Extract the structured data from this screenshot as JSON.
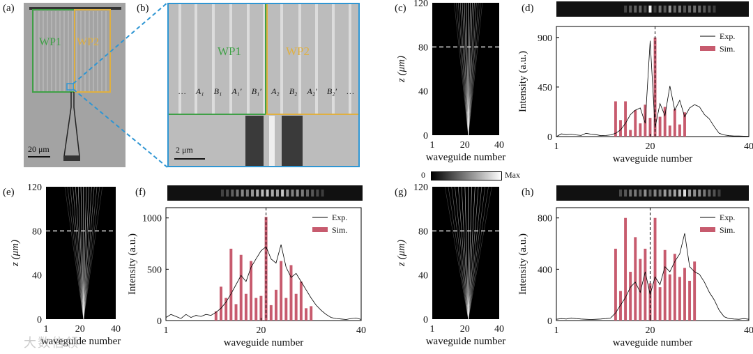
{
  "panel_labels": {
    "a": "(a)",
    "b": "(b)",
    "c": "(c)",
    "d": "(d)",
    "e": "(e)",
    "f": "(f)",
    "g": "(g)",
    "h": "(h)"
  },
  "sem_a": {
    "wp1_label": "WP1",
    "wp2_label": "WP2",
    "scale_bar": "20 μm"
  },
  "sem_b": {
    "wp1_label": "WP1",
    "wp2_label": "WP2",
    "scale_bar": "2 μm",
    "waveguide_labels": [
      "…",
      "A₁",
      "B₁",
      "A₁′",
      "B₁′",
      "A₂",
      "B₂",
      "A₂′",
      "B₂′",
      "…"
    ]
  },
  "colors": {
    "wp1": "#3fa046",
    "wp2": "#e0b040",
    "zoom": "#2f96d3",
    "sim": "#c75b6e",
    "exp": "#000000"
  },
  "colorbar": {
    "min_label": "0",
    "max_label": "Max"
  },
  "z_axis_label": "z (μm)",
  "chart_data": [
    {
      "id": "c",
      "type": "heatmap",
      "xlabel": "waveguide number",
      "ylabel": "z (μm)",
      "xticks": [
        1,
        20,
        40
      ],
      "yticks": [
        0,
        40,
        80,
        120
      ],
      "ylim": [
        0,
        120
      ],
      "marker_z": 80,
      "source_waveguide": 22
    },
    {
      "id": "d",
      "type": "bar",
      "title": "",
      "xlabel": "waveguide number",
      "ylabel": "Intensity (a.u.)",
      "xlim": [
        1,
        40
      ],
      "ylim": [
        0,
        1000
      ],
      "xticks": [
        1,
        20,
        40
      ],
      "yticks": [
        0,
        450,
        900
      ],
      "dashed_x": 21,
      "legend": [
        "Exp.",
        "Sim."
      ],
      "legend_position": "top-right",
      "sim_x": [
        13,
        14,
        15,
        16,
        17,
        18,
        19,
        20,
        21,
        22,
        23,
        24,
        25,
        26,
        27
      ],
      "sim_y": [
        320,
        150,
        320,
        60,
        240,
        120,
        290,
        170,
        900,
        180,
        270,
        100,
        250,
        110,
        220
      ],
      "exp_y": [
        0,
        25,
        18,
        22,
        15,
        10,
        30,
        22,
        18,
        8,
        10,
        15,
        30,
        60,
        120,
        200,
        240,
        260,
        120,
        870,
        80,
        300,
        190,
        460,
        240,
        330,
        180,
        260,
        290,
        270,
        200,
        160,
        90,
        30,
        15,
        8,
        5,
        5,
        4,
        3
      ]
    },
    {
      "id": "e",
      "type": "heatmap",
      "xlabel": "waveguide number",
      "ylabel": "z (μm)",
      "xticks": [
        1,
        20,
        40
      ],
      "yticks": [
        0,
        40,
        80,
        120
      ],
      "ylim": [
        0,
        120
      ],
      "marker_z": 80,
      "source_waveguide": 22
    },
    {
      "id": "f",
      "type": "bar",
      "title": "",
      "xlabel": "waveguide number",
      "ylabel": "Intensity (a.u.)",
      "xlim": [
        1,
        40
      ],
      "ylim": [
        0,
        1100
      ],
      "xticks": [
        1,
        20,
        40
      ],
      "yticks": [
        0,
        500,
        1000
      ],
      "dashed_x": 21,
      "legend": [
        "Exp.",
        "Sim."
      ],
      "legend_position": "top-right",
      "sim_x": [
        11,
        12,
        13,
        14,
        15,
        16,
        17,
        18,
        19,
        20,
        21,
        22,
        23,
        24,
        25,
        26,
        27,
        28,
        29,
        30
      ],
      "sim_y": [
        90,
        330,
        220,
        700,
        160,
        640,
        260,
        580,
        220,
        240,
        1010,
        150,
        300,
        580,
        220,
        540,
        260,
        380,
        120,
        140
      ],
      "exp_y": [
        30,
        60,
        40,
        20,
        60,
        30,
        50,
        40,
        60,
        50,
        80,
        120,
        180,
        260,
        350,
        440,
        380,
        520,
        600,
        680,
        720,
        600,
        560,
        740,
        520,
        420,
        460,
        380,
        300,
        220,
        150,
        100,
        60,
        30,
        20,
        15,
        10,
        20,
        25,
        10
      ]
    },
    {
      "id": "g",
      "type": "heatmap",
      "xlabel": "waveguide number",
      "ylabel": "z (μm)",
      "xticks": [
        1,
        20,
        40
      ],
      "yticks": [
        0,
        40,
        80,
        120
      ],
      "ylim": [
        0,
        120
      ],
      "marker_z": 80,
      "source_waveguide": 22
    },
    {
      "id": "h",
      "type": "bar",
      "title": "",
      "xlabel": "waveguide number",
      "ylabel": "Intensity (a.u.)",
      "xlim": [
        1,
        40
      ],
      "ylim": [
        0,
        880
      ],
      "xticks": [
        1,
        20,
        40
      ],
      "yticks": [
        0,
        400,
        800
      ],
      "dashed_x": 20,
      "legend": [
        "Exp.",
        "Sim."
      ],
      "legend_position": "top-right",
      "sim_x": [
        13,
        14,
        15,
        16,
        17,
        18,
        19,
        20,
        21,
        22,
        23,
        24,
        25,
        26,
        27,
        28,
        29
      ],
      "sim_y": [
        560,
        230,
        800,
        380,
        650,
        480,
        560,
        290,
        800,
        260,
        550,
        360,
        520,
        340,
        410,
        310,
        460
      ],
      "exp_y": [
        10,
        15,
        12,
        20,
        15,
        12,
        10,
        8,
        10,
        12,
        15,
        20,
        60,
        120,
        180,
        260,
        300,
        220,
        380,
        200,
        340,
        280,
        420,
        380,
        460,
        520,
        680,
        420,
        380,
        360,
        300,
        220,
        160,
        80,
        30,
        15,
        12,
        10,
        15,
        10
      ]
    }
  ],
  "watermark": "大数信领"
}
